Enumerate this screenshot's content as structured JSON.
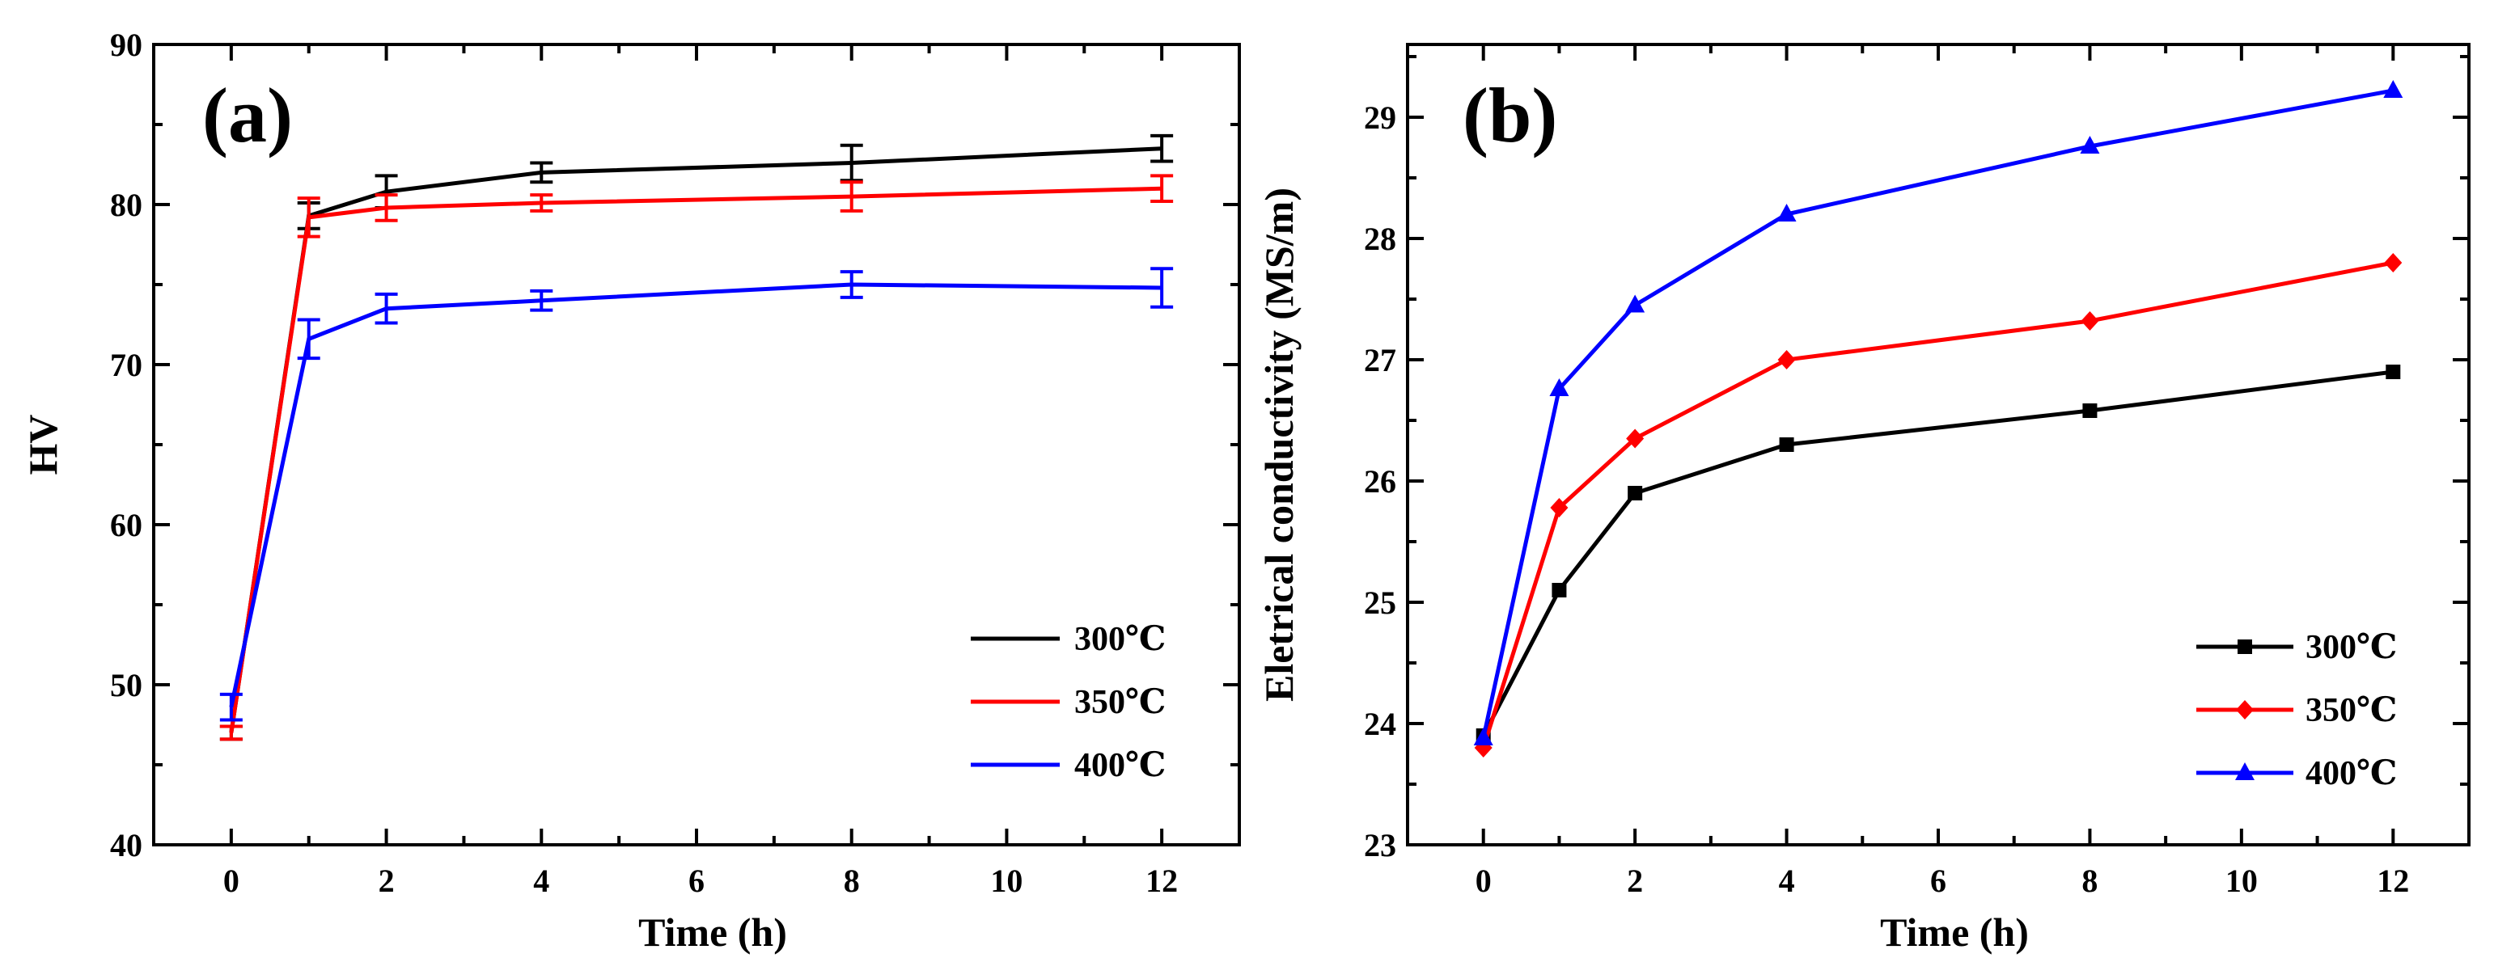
{
  "chart_data": [
    {
      "type": "line",
      "panel_label": "(a)",
      "xlabel": "Time (h)",
      "ylabel": "HV",
      "xlim": [
        -1,
        13
      ],
      "ylim": [
        40,
        90
      ],
      "xticks": [
        0,
        2,
        4,
        6,
        8,
        10,
        12
      ],
      "yticks": [
        40,
        50,
        60,
        70,
        80,
        90
      ],
      "legend_position": "bottom-right",
      "x": [
        0,
        1,
        2,
        4,
        8,
        12
      ],
      "series": [
        {
          "name": "300℃",
          "color": "#000000",
          "marker": "none",
          "values": [
            47.0,
            79.3,
            80.8,
            82.0,
            82.6,
            83.5
          ],
          "errors": [
            0.4,
            0.8,
            1.0,
            0.6,
            1.1,
            0.8
          ]
        },
        {
          "name": "350℃",
          "color": "#ff0000",
          "marker": "none",
          "values": [
            47.0,
            79.2,
            79.8,
            80.1,
            80.5,
            81.0
          ],
          "errors": [
            0.4,
            1.2,
            0.8,
            0.5,
            0.9,
            0.8
          ]
        },
        {
          "name": "400℃",
          "color": "#0000ff",
          "marker": "none",
          "values": [
            48.6,
            71.6,
            73.5,
            74.0,
            75.0,
            74.8
          ],
          "errors": [
            0.8,
            1.2,
            0.9,
            0.6,
            0.8,
            1.2
          ]
        }
      ]
    },
    {
      "type": "line",
      "panel_label": "(b)",
      "xlabel": "Time (h)",
      "ylabel": "Eletrical conductivity (MS/m)",
      "xlim": [
        -1,
        13
      ],
      "ylim": [
        23,
        29.6
      ],
      "xticks": [
        0,
        2,
        4,
        6,
        8,
        10,
        12
      ],
      "yticks": [
        23,
        24,
        25,
        26,
        27,
        28,
        29
      ],
      "legend_position": "bottom-right",
      "x": [
        0,
        1,
        2,
        4,
        8,
        12
      ],
      "series": [
        {
          "name": "300℃",
          "color": "#000000",
          "marker": "square",
          "values": [
            23.9,
            25.1,
            25.9,
            26.3,
            26.58,
            26.9
          ]
        },
        {
          "name": "350℃",
          "color": "#ff0000",
          "marker": "diamond",
          "values": [
            23.8,
            25.78,
            26.35,
            27.0,
            27.32,
            27.8
          ]
        },
        {
          "name": "400℃",
          "color": "#0000ff",
          "marker": "triangle",
          "values": [
            23.88,
            26.76,
            27.45,
            28.2,
            28.76,
            29.22
          ]
        }
      ]
    }
  ]
}
